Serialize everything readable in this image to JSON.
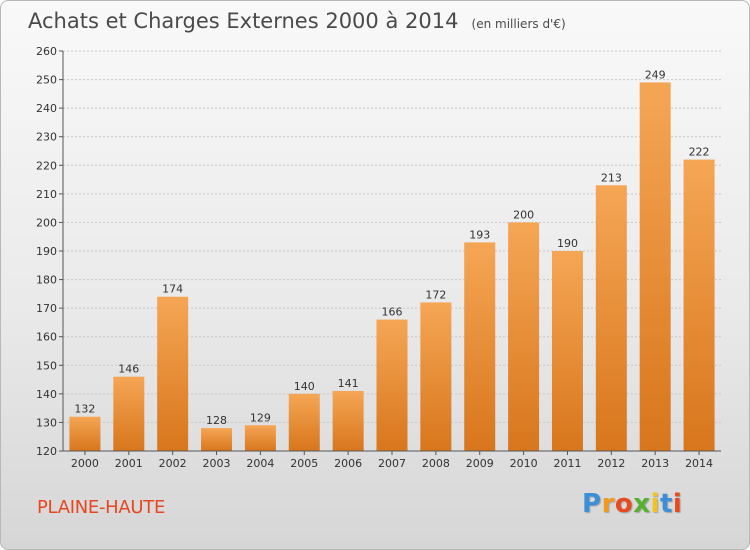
{
  "title": {
    "main": "Achats et Charges Externes 2000 à 2014",
    "unit": "(en milliers d'€)"
  },
  "commune": "PLAINE-HAUTE",
  "logo": {
    "letters": [
      "P",
      "r",
      "o",
      "x",
      "i",
      "t",
      "i"
    ],
    "colors": [
      "#3a8fd8",
      "#f29a1e",
      "#e84a1e",
      "#58b030",
      "#f2c21e",
      "#3a8fd8",
      "#e84a1e"
    ]
  },
  "colors": {
    "bar_light": "#f5a655",
    "bar_dark": "#d8761c",
    "grid": "#c8c8c8"
  },
  "chart_data": {
    "type": "bar",
    "title": "Achats et Charges Externes 2000 à 2014",
    "subtitle": "(en milliers d'€)",
    "categories": [
      "2000",
      "2001",
      "2002",
      "2003",
      "2004",
      "2005",
      "2006",
      "2007",
      "2008",
      "2009",
      "2010",
      "2011",
      "2012",
      "2013",
      "2014"
    ],
    "values": [
      132,
      146,
      174,
      128,
      129,
      140,
      141,
      166,
      172,
      193,
      200,
      190,
      213,
      249,
      222
    ],
    "ylim": [
      120,
      260
    ],
    "yticks": [
      120,
      130,
      140,
      150,
      160,
      170,
      180,
      190,
      200,
      210,
      220,
      230,
      240,
      250,
      260
    ],
    "grid": true,
    "xlabel": "",
    "ylabel": ""
  }
}
